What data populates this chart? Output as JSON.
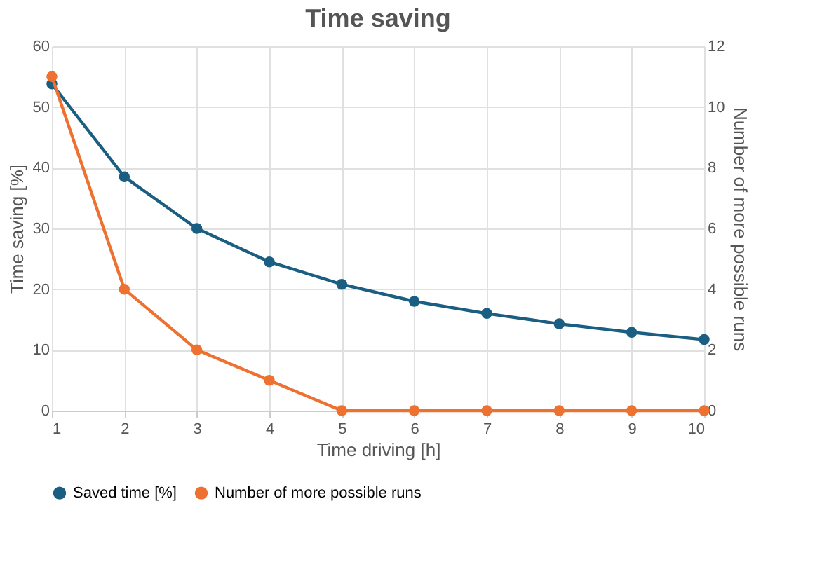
{
  "chart_data": {
    "type": "line",
    "title": "Time saving",
    "xlabel": "Time driving [h]",
    "ylabel": "Time saving  [%]",
    "y2label": "Number of more possible runs",
    "x": [
      1,
      2,
      3,
      4,
      5,
      6,
      7,
      8,
      9,
      10
    ],
    "series": [
      {
        "name": "Saved time [%]",
        "color": "#1a5e82",
        "values": [
          53.8,
          38.5,
          30,
          24.5,
          20.8,
          18,
          16,
          14.3,
          12.9,
          11.7
        ]
      },
      {
        "name": "Number of more possible runs",
        "color": "#ed7130",
        "axis": "y2",
        "values": [
          11,
          4,
          2,
          1,
          0,
          0,
          0,
          0,
          0,
          0
        ]
      }
    ],
    "xlim": [
      1,
      10
    ],
    "xticks": [
      1,
      2,
      3,
      4,
      5,
      6,
      7,
      8,
      9,
      10
    ],
    "ylim": [
      0,
      60
    ],
    "yticks": [
      0,
      10,
      20,
      30,
      40,
      50,
      60
    ],
    "y2lim": [
      0,
      12
    ],
    "y2ticks": [
      0,
      2,
      4,
      6,
      8,
      10,
      12
    ],
    "grid": true,
    "legend": "bottom",
    "marker": "circle",
    "line_style": "solid"
  }
}
